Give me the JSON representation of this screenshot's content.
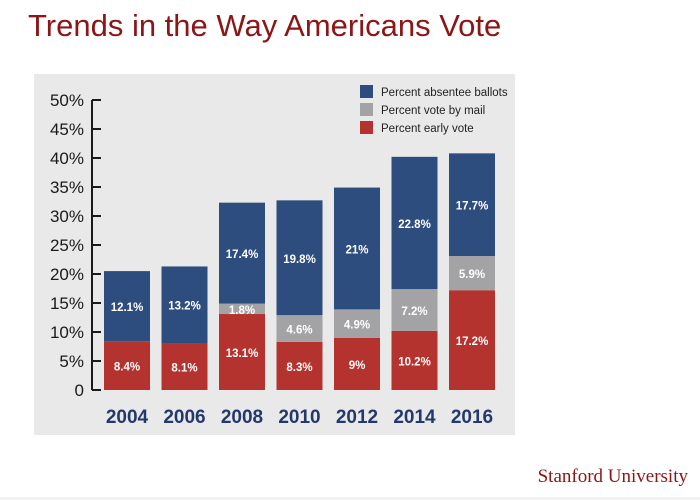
{
  "slide": {
    "title": "Trends in the Way Americans Vote",
    "brand": "Stanford University"
  },
  "chart_data": {
    "type": "bar",
    "stacked": true,
    "categories": [
      "2004",
      "2006",
      "2008",
      "2010",
      "2012",
      "2014",
      "2016"
    ],
    "series": [
      {
        "name": "Percent early vote",
        "color": "#b5332f",
        "values": [
          8.4,
          8.1,
          13.1,
          8.3,
          9,
          10.2,
          17.2
        ],
        "labels": [
          "8.4%",
          "8.1%",
          "13.1%",
          "8.3%",
          "9%",
          "10.2%",
          "17.2%"
        ]
      },
      {
        "name": "Percent vote by mail",
        "color": "#a3a3a6",
        "values": [
          0,
          0,
          1.8,
          4.6,
          4.9,
          7.2,
          5.9
        ],
        "labels": [
          "",
          "",
          "1.8%",
          "4.6%",
          "4.9%",
          "7.2%",
          "5.9%"
        ]
      },
      {
        "name": "Percent absentee ballots",
        "color": "#2d4d7e",
        "values": [
          12.1,
          13.2,
          17.4,
          19.8,
          21,
          22.8,
          17.7
        ],
        "labels": [
          "12.1%",
          "13.2%",
          "17.4%",
          "19.8%",
          "21%",
          "22.8%",
          "17.7%"
        ]
      }
    ],
    "legend": {
      "placement": "top-right",
      "order": [
        "Percent absentee ballots",
        "Percent vote by mail",
        "Percent early vote"
      ]
    },
    "yticks": [
      0,
      5,
      10,
      15,
      20,
      25,
      30,
      35,
      40,
      45,
      50
    ],
    "ytick_labels": [
      "0",
      "5%",
      "10%",
      "15%",
      "20%",
      "25%",
      "30%",
      "35%",
      "40%",
      "45%",
      "50%"
    ],
    "ylim": [
      0,
      50
    ],
    "grid": false
  }
}
